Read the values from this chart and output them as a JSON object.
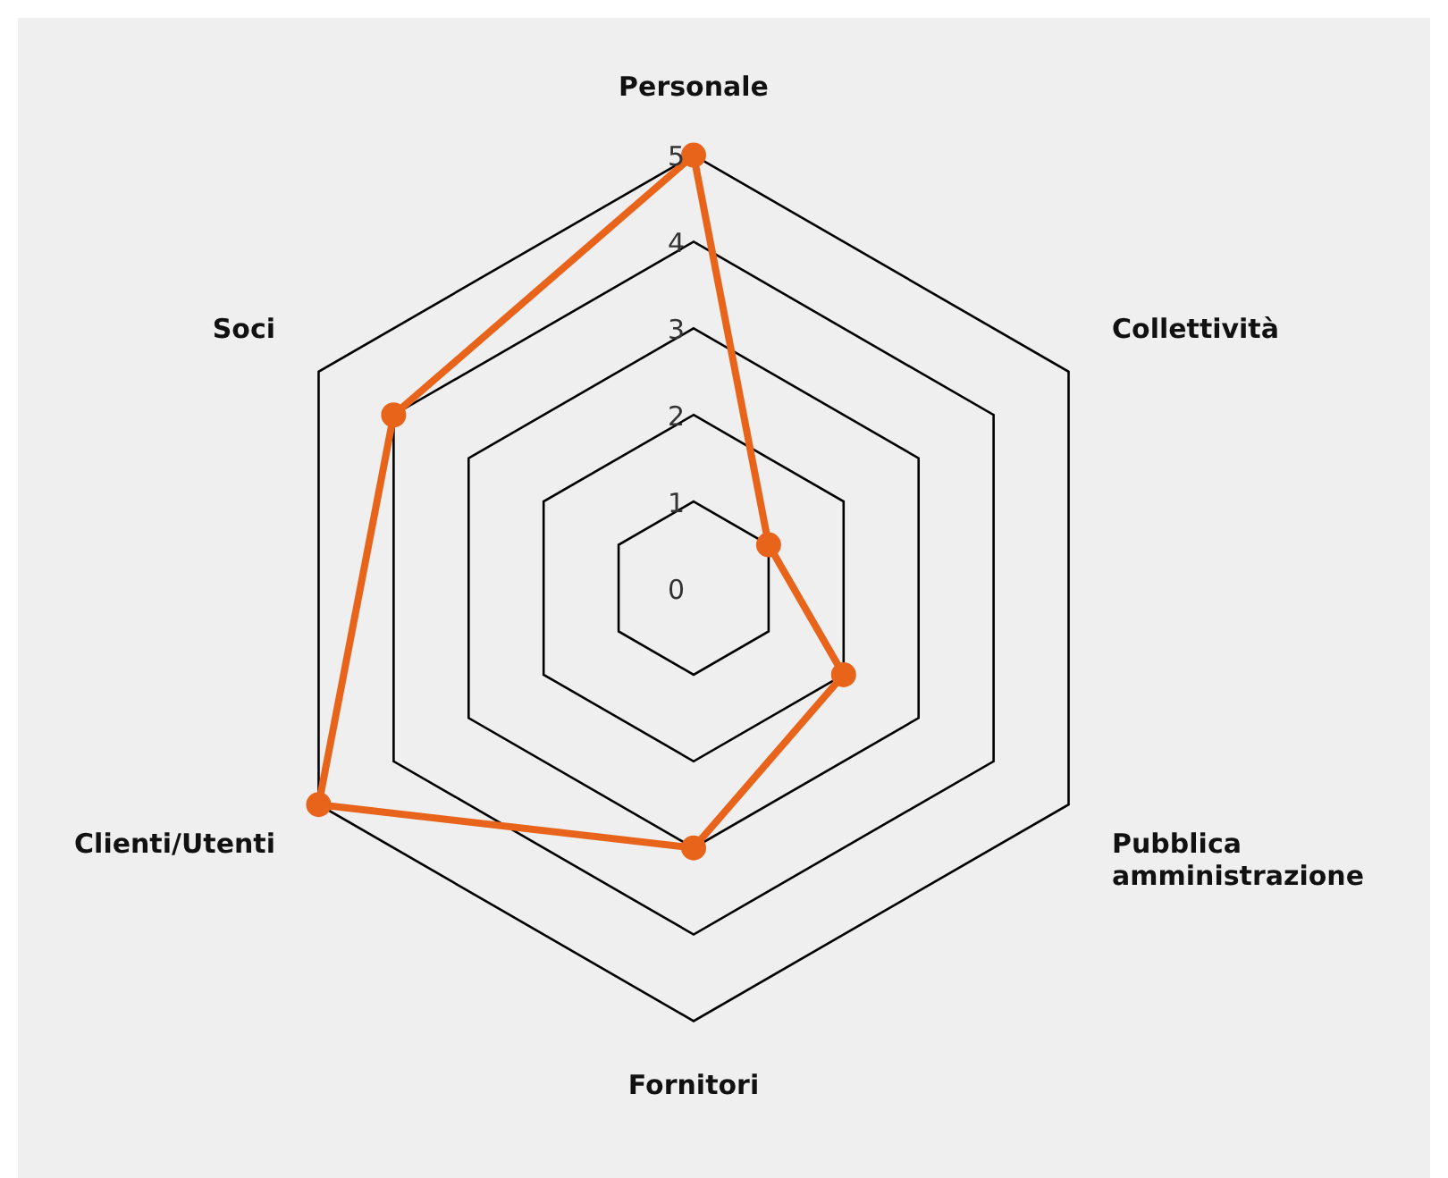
{
  "chart_data": {
    "type": "radar",
    "categories": [
      "Personale",
      "Collettività",
      "Pubblica amministrazione",
      "Fornitori",
      "Clienti/Utenti",
      "Soci"
    ],
    "series": [
      {
        "color": "#e8641b",
        "values": [
          5,
          1,
          2,
          3,
          5,
          4
        ]
      }
    ],
    "ylim": [
      0,
      5
    ],
    "yticks": [
      0,
      1,
      2,
      3,
      4,
      5
    ],
    "grid": true,
    "legend": false,
    "marker": "circle",
    "line_style": "solid"
  }
}
